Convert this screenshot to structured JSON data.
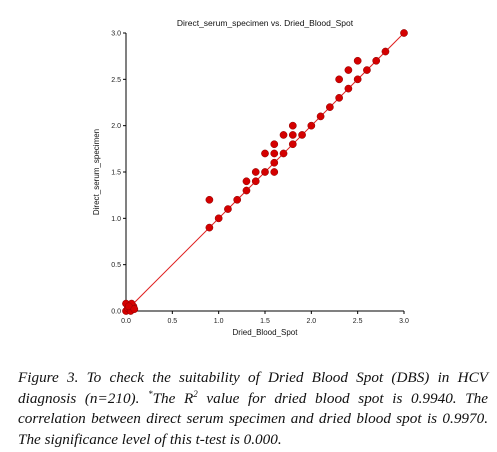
{
  "chart_data": {
    "type": "scatter",
    "title": "Direct_serum_specimen vs. Dried_Blood_Spot",
    "xlabel": "Dried_Blood_Spot",
    "ylabel": "Direct_serum_specimen",
    "xlim": [
      0,
      3
    ],
    "ylim": [
      0,
      3
    ],
    "xticks": [
      "0.0",
      "0.5",
      "1.0",
      "1.5",
      "2.0",
      "2.5",
      "3.0"
    ],
    "yticks": [
      "0.0",
      "0.5",
      "1.0",
      "1.5",
      "2.0",
      "2.5",
      "3.0"
    ],
    "grid": false,
    "legend": "none",
    "marker_color": "#d40000",
    "fit_line_color": "#e02020",
    "fit_line": {
      "x": [
        0,
        3
      ],
      "y": [
        0,
        3
      ]
    },
    "points": [
      {
        "x": 0.0,
        "y": 0.0
      },
      {
        "x": 0.02,
        "y": 0.03
      },
      {
        "x": 0.05,
        "y": 0.0
      },
      {
        "x": 0.08,
        "y": 0.05
      },
      {
        "x": 0.0,
        "y": 0.08
      },
      {
        "x": 0.06,
        "y": 0.08
      },
      {
        "x": 0.03,
        "y": 0.05
      },
      {
        "x": 0.09,
        "y": 0.02
      },
      {
        "x": 0.9,
        "y": 1.2
      },
      {
        "x": 0.9,
        "y": 0.9
      },
      {
        "x": 1.0,
        "y": 1.0
      },
      {
        "x": 1.1,
        "y": 1.1
      },
      {
        "x": 1.2,
        "y": 1.2
      },
      {
        "x": 1.3,
        "y": 1.3
      },
      {
        "x": 1.3,
        "y": 1.4
      },
      {
        "x": 1.4,
        "y": 1.4
      },
      {
        "x": 1.4,
        "y": 1.5
      },
      {
        "x": 1.5,
        "y": 1.5
      },
      {
        "x": 1.5,
        "y": 1.7
      },
      {
        "x": 1.6,
        "y": 1.5
      },
      {
        "x": 1.6,
        "y": 1.6
      },
      {
        "x": 1.6,
        "y": 1.7
      },
      {
        "x": 1.6,
        "y": 1.8
      },
      {
        "x": 1.7,
        "y": 1.7
      },
      {
        "x": 1.7,
        "y": 1.9
      },
      {
        "x": 1.8,
        "y": 1.8
      },
      {
        "x": 1.8,
        "y": 1.9
      },
      {
        "x": 1.8,
        "y": 2.0
      },
      {
        "x": 1.9,
        "y": 1.9
      },
      {
        "x": 2.0,
        "y": 2.0
      },
      {
        "x": 2.1,
        "y": 2.1
      },
      {
        "x": 2.2,
        "y": 2.2
      },
      {
        "x": 2.3,
        "y": 2.3
      },
      {
        "x": 2.3,
        "y": 2.5
      },
      {
        "x": 2.4,
        "y": 2.4
      },
      {
        "x": 2.4,
        "y": 2.6
      },
      {
        "x": 2.5,
        "y": 2.5
      },
      {
        "x": 2.5,
        "y": 2.7
      },
      {
        "x": 2.6,
        "y": 2.6
      },
      {
        "x": 2.7,
        "y": 2.7
      },
      {
        "x": 2.8,
        "y": 2.8
      },
      {
        "x": 3.0,
        "y": 3.0
      }
    ]
  },
  "caption": {
    "label": "Figure 3.",
    "text_1": " To check the suitability of Dried Blood Spot (DBS) in HCV diagnosis (n=210). ",
    "asterisk": "*",
    "text_2": "The R",
    "superscript": "2",
    "text_3": " value for dried blood spot is 0.9940. The correlation between direct serum specimen and dried blood spot is 0.9970. The significance level of this t-test is 0.000."
  }
}
